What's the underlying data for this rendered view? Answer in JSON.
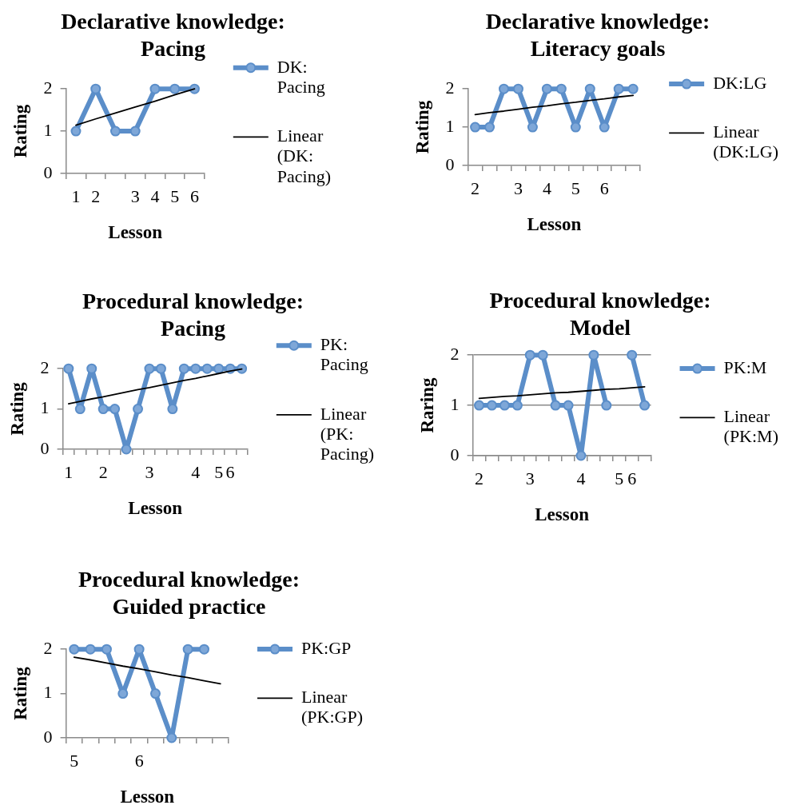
{
  "chart_data": [
    {
      "type": "line",
      "title": "Declarative knowledge: Pacing",
      "xlabel": "Lesson",
      "ylabel": "Rating",
      "categories": [
        "1",
        "2",
        null,
        "3",
        "4",
        "5",
        "6"
      ],
      "series": [
        {
          "name": "DK: Pacing",
          "color": "#5b8ec9",
          "values": [
            1,
            2,
            1,
            1,
            2,
            2,
            2
          ]
        },
        {
          "name": "Linear (DK: Pacing)",
          "color": "#000000",
          "values": [
            1.14,
            1.29,
            1.43,
            1.57,
            1.71,
            1.86,
            2
          ],
          "marker": "none"
        }
      ],
      "ylim": [
        0,
        2
      ],
      "yticks": [
        0,
        1,
        2
      ],
      "marker": "circle",
      "legend": "right"
    },
    {
      "type": "line",
      "title": "Declarative knowledge: Literacy goals",
      "xlabel": "Lesson",
      "ylabel": "Rating",
      "categories": [
        "2",
        null,
        null,
        "3",
        null,
        "4",
        null,
        "5",
        null,
        "6",
        null,
        null
      ],
      "series": [
        {
          "name": "DK:LG",
          "color": "#5b8ec9",
          "values": [
            1,
            1,
            2,
            2,
            1,
            2,
            2,
            1,
            2,
            1,
            2,
            2
          ]
        },
        {
          "name": "Linear (DK:LG)",
          "color": "#000000",
          "values": [
            1.33,
            1.38,
            1.42,
            1.47,
            1.52,
            1.56,
            1.61,
            1.65,
            1.7,
            1.74,
            1.79,
            1.83
          ],
          "marker": "none"
        }
      ],
      "ylim": [
        0,
        2
      ],
      "yticks": [
        0,
        1,
        2
      ],
      "marker": "circle",
      "legend": "right"
    },
    {
      "type": "line",
      "title": "Procedural knowledge: Pacing",
      "xlabel": "Lesson",
      "ylabel": "Rating",
      "categories": [
        "1",
        null,
        null,
        "2",
        null,
        null,
        null,
        "3",
        null,
        null,
        null,
        "4",
        null,
        "5",
        "6",
        null
      ],
      "series": [
        {
          "name": "PK: Pacing",
          "color": "#5b8ec9",
          "values": [
            2,
            1,
            2,
            1,
            1,
            0,
            1,
            2,
            2,
            1,
            2,
            2,
            2,
            2,
            2,
            2
          ]
        },
        {
          "name": "Linear (PK: Pacing)",
          "color": "#000000",
          "values": [
            1.13,
            1.19,
            1.25,
            1.3,
            1.36,
            1.42,
            1.48,
            1.53,
            1.59,
            1.65,
            1.71,
            1.76,
            1.82,
            1.88,
            1.94,
            1.99
          ],
          "marker": "none"
        }
      ],
      "ylim": [
        0,
        2
      ],
      "yticks": [
        0,
        1,
        2
      ],
      "marker": "circle",
      "legend": "right"
    },
    {
      "type": "line",
      "title": "Procedural knowledge: Model",
      "xlabel": "Lesson",
      "ylabel": "Raring",
      "categories": [
        "2",
        null,
        null,
        null,
        "3",
        null,
        null,
        null,
        "4",
        null,
        null,
        "5",
        "6",
        null
      ],
      "series": [
        {
          "name": "PK:M",
          "color": "#5b8ec9",
          "values": [
            1,
            1,
            1,
            1,
            2,
            2,
            1,
            1,
            0,
            2,
            1,
            null,
            2,
            1
          ]
        },
        {
          "name": "Linear (PK:M)",
          "color": "#000000",
          "values": [
            1.14,
            1.16,
            1.18,
            1.19,
            1.21,
            1.23,
            1.25,
            1.26,
            1.28,
            1.3,
            1.32,
            1.33,
            1.35,
            1.37
          ],
          "marker": "none"
        }
      ],
      "ylim": [
        0,
        2
      ],
      "yticks": [
        0,
        1,
        2
      ],
      "marker": "circle",
      "legend": "right",
      "grid": "y"
    },
    {
      "type": "line",
      "title": "Procedural knowledge: Guided practice",
      "xlabel": "Lesson",
      "ylabel": "Rating",
      "categories": [
        "5",
        null,
        null,
        null,
        "6",
        null,
        null,
        null,
        null,
        null
      ],
      "series": [
        {
          "name": "PK:GP",
          "color": "#5b8ec9",
          "values": [
            2,
            2,
            2,
            1,
            2,
            1,
            0,
            2,
            2,
            null
          ]
        },
        {
          "name": "Linear (PK:GP)",
          "color": "#000000",
          "values": [
            1.82,
            1.76,
            1.69,
            1.62,
            1.56,
            1.49,
            1.42,
            1.36,
            1.29,
            1.22
          ],
          "marker": "none"
        }
      ],
      "ylim": [
        0,
        2
      ],
      "yticks": [
        0,
        1,
        2
      ],
      "marker": "circle",
      "legend": "right"
    }
  ]
}
